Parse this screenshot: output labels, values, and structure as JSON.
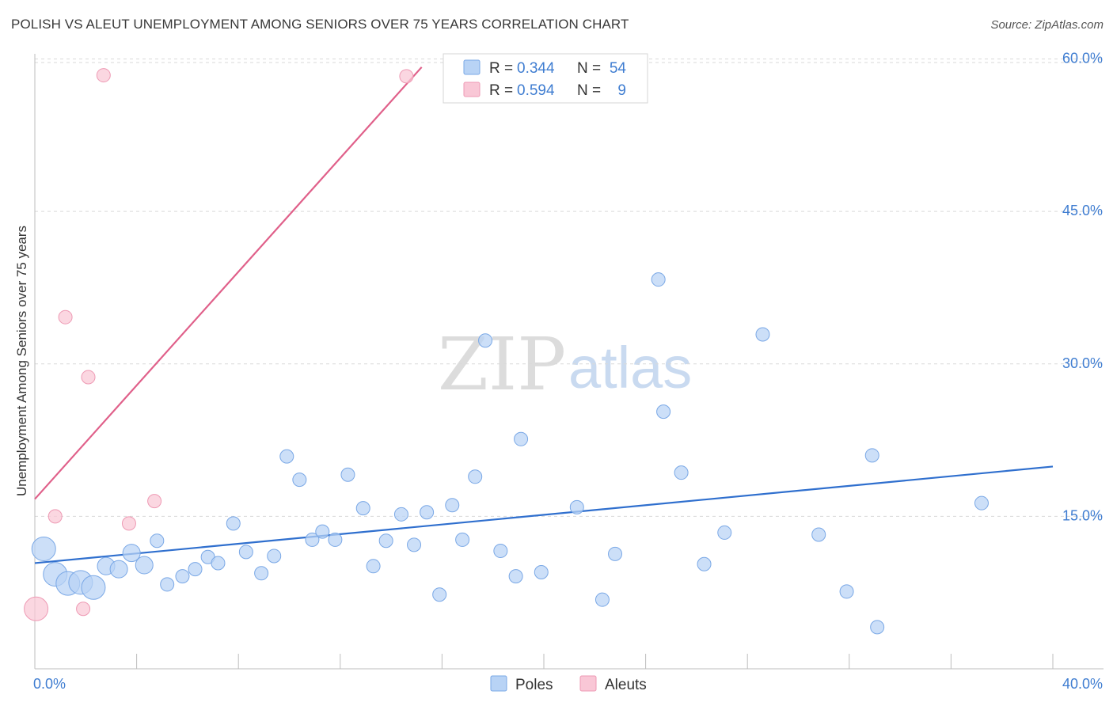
{
  "title": "POLISH VS ALEUT UNEMPLOYMENT AMONG SENIORS OVER 75 YEARS CORRELATION CHART",
  "source": "Source: ZipAtlas.com",
  "watermark": {
    "zip": "ZIP",
    "atlas": "atlas"
  },
  "colors": {
    "poles_fill": "#b8d3f5",
    "poles_stroke": "#7aa8e6",
    "poles_line": "#2f6fce",
    "aleuts_fill": "#f9c7d6",
    "aleuts_stroke": "#ee9ab4",
    "aleuts_line": "#e0608a",
    "grid": "#d9d9d9",
    "tick_label": "#3f7dd1"
  },
  "legend": {
    "rows": [
      {
        "r_label": "R =",
        "r_value": "0.344",
        "n_label": "N =",
        "n_value": "54",
        "series": "poles"
      },
      {
        "r_label": "R =",
        "r_value": "0.594",
        "n_label": "N =",
        "n_value": "9",
        "series": "aleuts"
      }
    ]
  },
  "bottom_legend": [
    {
      "label": "Poles",
      "series": "poles"
    },
    {
      "label": "Aleuts",
      "series": "aleuts"
    }
  ],
  "chart_data": {
    "type": "scatter",
    "title": "POLISH VS ALEUT UNEMPLOYMENT AMONG SENIORS OVER 75 YEARS CORRELATION CHART",
    "xlabel": "",
    "ylabel": "Unemployment Among Seniors over 75 years",
    "xlim": [
      0,
      40
    ],
    "ylim": [
      0,
      63
    ],
    "x_tick_labels": [
      "0.0%",
      "40.0%"
    ],
    "y_ticks": [
      15,
      30,
      45,
      60
    ],
    "y_tick_labels": [
      "15.0%",
      "30.0%",
      "45.0%",
      "60.0%"
    ],
    "grid": true,
    "legend_placement": "top-center",
    "series": [
      {
        "name": "Poles",
        "points": [
          {
            "x": 0.35,
            "y": 11.8,
            "s": 3
          },
          {
            "x": 0.8,
            "y": 9.3,
            "s": 3
          },
          {
            "x": 1.3,
            "y": 8.4,
            "s": 3
          },
          {
            "x": 1.8,
            "y": 8.5,
            "s": 3
          },
          {
            "x": 2.3,
            "y": 8.0,
            "s": 3
          },
          {
            "x": 2.8,
            "y": 10.1,
            "s": 2
          },
          {
            "x": 3.3,
            "y": 9.8,
            "s": 2
          },
          {
            "x": 3.8,
            "y": 11.4,
            "s": 2
          },
          {
            "x": 4.3,
            "y": 10.2,
            "s": 2
          },
          {
            "x": 4.8,
            "y": 12.6,
            "s": 1
          },
          {
            "x": 5.2,
            "y": 8.3,
            "s": 1
          },
          {
            "x": 5.8,
            "y": 9.1,
            "s": 1
          },
          {
            "x": 6.3,
            "y": 9.8,
            "s": 1
          },
          {
            "x": 6.8,
            "y": 11.0,
            "s": 1
          },
          {
            "x": 7.2,
            "y": 10.4,
            "s": 1
          },
          {
            "x": 7.8,
            "y": 14.3,
            "s": 1
          },
          {
            "x": 8.3,
            "y": 11.5,
            "s": 1
          },
          {
            "x": 8.9,
            "y": 9.4,
            "s": 1
          },
          {
            "x": 9.4,
            "y": 11.1,
            "s": 1
          },
          {
            "x": 9.9,
            "y": 20.9,
            "s": 1
          },
          {
            "x": 10.4,
            "y": 18.6,
            "s": 1
          },
          {
            "x": 10.9,
            "y": 12.7,
            "s": 1
          },
          {
            "x": 11.3,
            "y": 13.5,
            "s": 1
          },
          {
            "x": 11.8,
            "y": 12.7,
            "s": 1
          },
          {
            "x": 12.3,
            "y": 19.1,
            "s": 1
          },
          {
            "x": 12.9,
            "y": 15.8,
            "s": 1
          },
          {
            "x": 13.3,
            "y": 10.1,
            "s": 1
          },
          {
            "x": 13.8,
            "y": 12.6,
            "s": 1
          },
          {
            "x": 14.4,
            "y": 15.2,
            "s": 1
          },
          {
            "x": 14.9,
            "y": 12.2,
            "s": 1
          },
          {
            "x": 15.4,
            "y": 15.4,
            "s": 1
          },
          {
            "x": 15.9,
            "y": 7.3,
            "s": 1
          },
          {
            "x": 16.4,
            "y": 16.1,
            "s": 1
          },
          {
            "x": 16.8,
            "y": 12.7,
            "s": 1
          },
          {
            "x": 17.3,
            "y": 18.9,
            "s": 1
          },
          {
            "x": 17.7,
            "y": 32.3,
            "s": 1
          },
          {
            "x": 18.3,
            "y": 11.6,
            "s": 1
          },
          {
            "x": 18.9,
            "y": 9.1,
            "s": 1
          },
          {
            "x": 19.1,
            "y": 22.6,
            "s": 1
          },
          {
            "x": 19.9,
            "y": 9.5,
            "s": 1
          },
          {
            "x": 21.3,
            "y": 15.9,
            "s": 1
          },
          {
            "x": 22.3,
            "y": 6.8,
            "s": 1
          },
          {
            "x": 22.8,
            "y": 11.3,
            "s": 1
          },
          {
            "x": 24.5,
            "y": 38.3,
            "s": 1
          },
          {
            "x": 24.7,
            "y": 25.3,
            "s": 1
          },
          {
            "x": 25.4,
            "y": 19.3,
            "s": 1
          },
          {
            "x": 26.3,
            "y": 10.3,
            "s": 1
          },
          {
            "x": 27.1,
            "y": 13.4,
            "s": 1
          },
          {
            "x": 28.6,
            "y": 32.9,
            "s": 1
          },
          {
            "x": 30.8,
            "y": 13.2,
            "s": 1
          },
          {
            "x": 31.9,
            "y": 7.6,
            "s": 1
          },
          {
            "x": 32.9,
            "y": 21.0,
            "s": 1
          },
          {
            "x": 33.1,
            "y": 4.1,
            "s": 1
          },
          {
            "x": 37.2,
            "y": 16.3,
            "s": 1
          }
        ],
        "trend": {
          "x0": 0,
          "y0": 10.4,
          "x1": 40,
          "y1": 19.9
        }
      },
      {
        "name": "Aleuts",
        "points": [
          {
            "x": 0.05,
            "y": 5.9,
            "s": 3
          },
          {
            "x": 0.8,
            "y": 15.0,
            "s": 1
          },
          {
            "x": 1.2,
            "y": 34.6,
            "s": 1
          },
          {
            "x": 1.9,
            "y": 5.9,
            "s": 1
          },
          {
            "x": 2.1,
            "y": 28.7,
            "s": 1
          },
          {
            "x": 2.7,
            "y": 58.4,
            "s": 1
          },
          {
            "x": 3.7,
            "y": 14.3,
            "s": 1
          },
          {
            "x": 4.7,
            "y": 16.5,
            "s": 1
          },
          {
            "x": 14.6,
            "y": 58.3,
            "s": 1
          }
        ],
        "trend": {
          "x0": 0,
          "y0": 16.7,
          "x1": 15.2,
          "y1": 59.2
        }
      }
    ]
  }
}
